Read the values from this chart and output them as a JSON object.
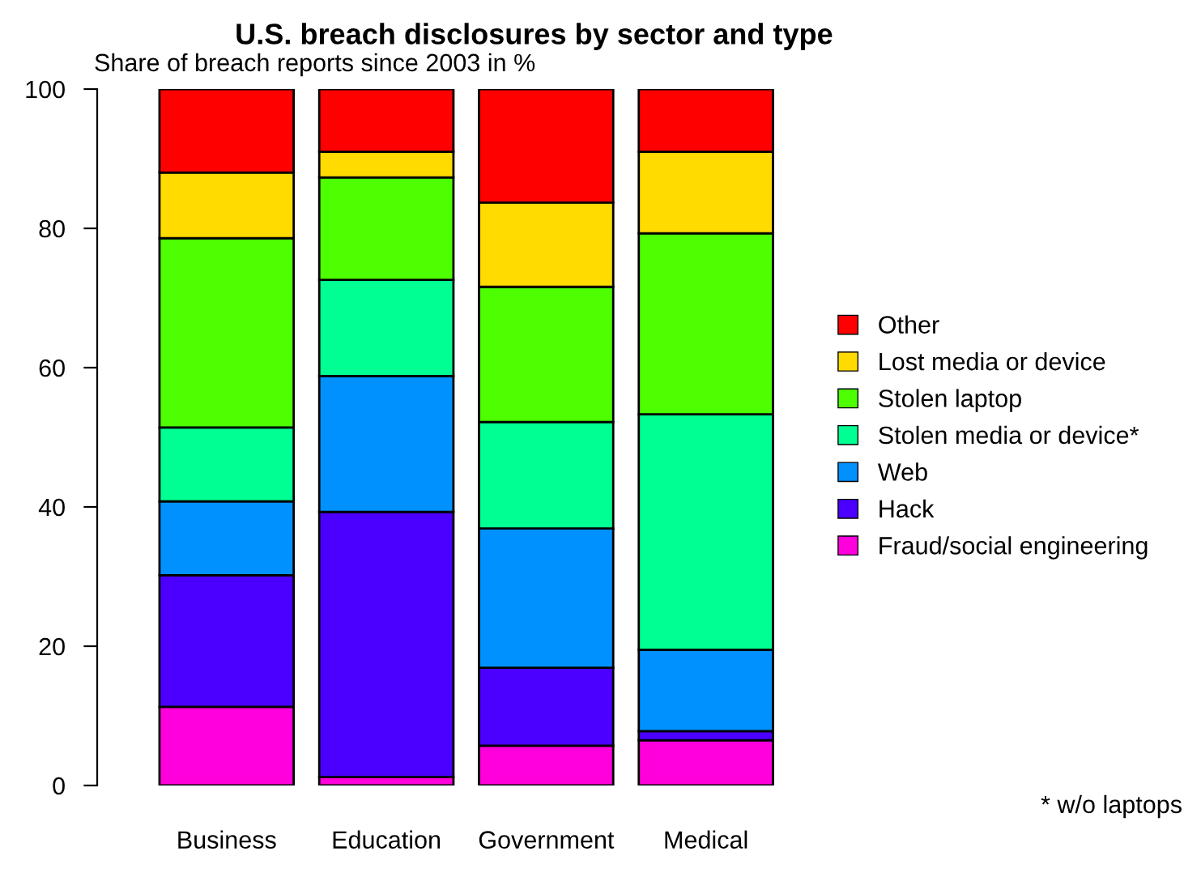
{
  "chart_data": {
    "type": "bar",
    "title": "U.S. breach disclosures by sector and type",
    "subtitle": "Share of breach reports since 2003 in %",
    "categories": [
      "Business",
      "Education",
      "Government",
      "Medical"
    ],
    "stacked": true,
    "series": [
      {
        "name": "Fraud/social engineering",
        "color": "#ff00dd",
        "values": [
          11.3,
          1.2,
          5.7,
          6.5
        ]
      },
      {
        "name": "Hack",
        "color": "#4b00ff",
        "values": [
          18.9,
          38.1,
          11.2,
          1.3
        ]
      },
      {
        "name": "Web",
        "color": "#0091ff",
        "values": [
          10.6,
          19.5,
          20.0,
          11.7
        ]
      },
      {
        "name": "Stolen media or device*",
        "color": "#00ff92",
        "values": [
          10.6,
          13.8,
          15.3,
          33.8
        ]
      },
      {
        "name": "Stolen laptop",
        "color": "#4dff00",
        "values": [
          27.2,
          14.7,
          19.4,
          26.0
        ]
      },
      {
        "name": "Lost media or device",
        "color": "#ffdb00",
        "values": [
          9.4,
          3.7,
          12.1,
          11.7
        ]
      },
      {
        "name": "Other",
        "color": "#ff0000",
        "values": [
          12.0,
          9.0,
          16.3,
          9.0
        ]
      }
    ],
    "ylim": [
      0,
      100
    ],
    "yticks": [
      0,
      20,
      40,
      60,
      80,
      100
    ],
    "grid": false,
    "legend": "right",
    "annotations": [
      "* w/o laptops"
    ]
  }
}
